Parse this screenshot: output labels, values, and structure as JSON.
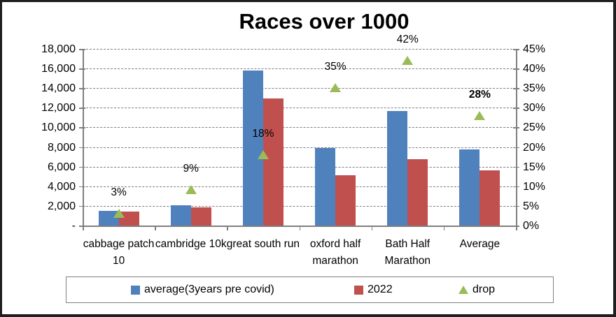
{
  "window": {
    "background": "#ffffff",
    "frame_border_color": "#1f1f1f"
  },
  "chart_data": {
    "type": "bar",
    "title": "Races over 1000",
    "categories": [
      "cabbage patch 10",
      "cambridge 10k",
      "great south run",
      "oxford half marathon",
      "Bath Half Marathon",
      "Average"
    ],
    "series": [
      {
        "name": "average(3years pre covid)",
        "render": "bar",
        "axis": "left",
        "color": "#4F81BD",
        "values": [
          1500,
          2050,
          15800,
          7900,
          11700,
          7790
        ]
      },
      {
        "name": "2022",
        "render": "bar",
        "axis": "left",
        "color": "#C0504D",
        "values": [
          1455,
          1870,
          12950,
          5135,
          6790,
          5640
        ]
      },
      {
        "name": "drop",
        "render": "triangle-marker",
        "axis": "right",
        "color": "#9BBB59",
        "values": [
          3,
          9,
          18,
          35,
          42,
          28
        ],
        "point_labels": [
          "3%",
          "9%",
          "18%",
          "35%",
          "42%",
          "28%"
        ],
        "point_label_bold": [
          false,
          false,
          false,
          false,
          false,
          true
        ]
      }
    ],
    "left_axis": {
      "min": 0,
      "max": 18000,
      "step": 2000,
      "tick_labels_top_to_bottom": [
        "18,000",
        "16,000",
        "14,000",
        "12,000",
        "10,000",
        "8,000",
        "6,000",
        "4,000",
        "2,000",
        "-"
      ]
    },
    "right_axis": {
      "min": 0,
      "max": 45,
      "step": 5,
      "tick_labels_top_to_bottom": [
        "45%",
        "40%",
        "35%",
        "30%",
        "25%",
        "20%",
        "15%",
        "10%",
        "5%",
        "0%"
      ]
    },
    "grid": "horizontal-dashed",
    "grid_color": "#7f7f7f",
    "axis_color": "#7f7f7f",
    "legend": {
      "position": "bottom",
      "items": [
        {
          "marker": "square",
          "color": "#4F81BD",
          "label": "average(3years pre covid)"
        },
        {
          "marker": "square",
          "color": "#C0504D",
          "label": "2022"
        },
        {
          "marker": "triangle",
          "color": "#9BBB59",
          "label": "drop"
        }
      ]
    }
  }
}
